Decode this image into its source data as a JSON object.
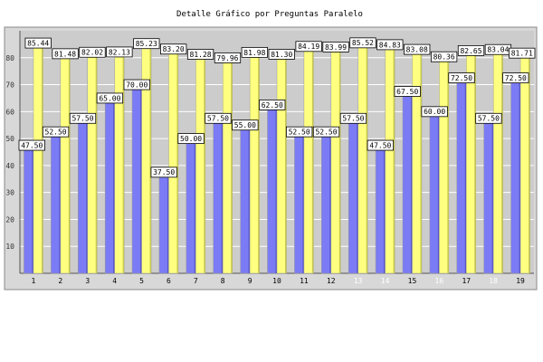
{
  "chart_data": {
    "type": "bar",
    "title": "Detalle Gráfico por Preguntas Paralelo",
    "xlabel": "",
    "ylabel": "",
    "categories": [
      "1",
      "2",
      "3",
      "4",
      "5",
      "6",
      "7",
      "8",
      "9",
      "10",
      "11",
      "12",
      "13",
      "14",
      "15",
      "16",
      "17",
      "18",
      "19"
    ],
    "series": [
      {
        "color": "#7b7bf5",
        "values": [
          47.5,
          52.5,
          57.5,
          65.0,
          70.0,
          37.5,
          50.0,
          57.5,
          55.0,
          62.5,
          52.5,
          52.5,
          57.5,
          47.5,
          67.5,
          60.0,
          72.5,
          57.5,
          72.5
        ],
        "labels": [
          "47.50",
          "52.50",
          "57.50",
          "65.00",
          "70.00",
          "37.50",
          "50.00",
          "57.50",
          "55.00",
          "62.50",
          "52.50",
          "52.50",
          "57.50",
          "47.50",
          "67.50",
          "60.00",
          "72.50",
          "57.50",
          "72.50"
        ]
      },
      {
        "color": "#ffff80",
        "values": [
          85.44,
          81.48,
          82.02,
          82.13,
          85.23,
          83.2,
          81.28,
          79.96,
          81.98,
          81.3,
          84.19,
          83.99,
          85.52,
          84.83,
          83.08,
          80.36,
          82.65,
          83.04,
          81.71
        ],
        "labels": [
          "85.44",
          "81.48",
          "82.02",
          "82.13",
          "85.23",
          "83.20",
          "81.28",
          "79.96",
          "81.98",
          "81.30",
          "84.19",
          "83.99",
          "85.52",
          "84.83",
          "83.08",
          "80.36",
          "82.65",
          "83.04",
          "81.71"
        ]
      }
    ],
    "ylim": [
      0,
      90
    ],
    "yticks": [
      "10",
      "20",
      "30",
      "40",
      "50",
      "60",
      "70",
      "80"
    ],
    "dim_category_labels": [
      13,
      14,
      16,
      18
    ],
    "grid": true,
    "legend": "none",
    "plot_background": "#cccccc",
    "frame_background": "#d8d8d8",
    "gridline_color": "#ffffff"
  }
}
